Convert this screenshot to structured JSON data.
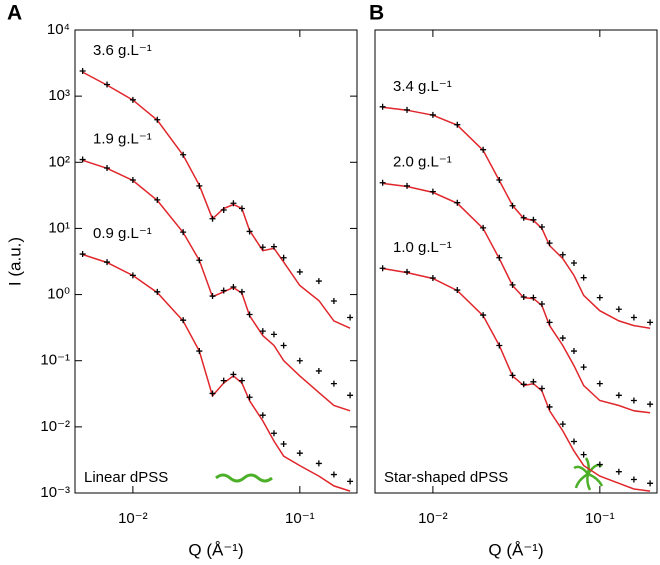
{
  "chart_data": [
    {
      "type": "line",
      "panel": "A",
      "ylabel": "I (a.u.)",
      "xlabel": "Q (Å⁻¹)",
      "note": "Linear dPSS",
      "log_x": true,
      "log_y": true,
      "xlim": [
        0.0045,
        0.22
      ],
      "ylim": [
        0.001,
        10000
      ],
      "xticks": [
        {
          "value": 0.01,
          "label": "10⁻²"
        },
        {
          "value": 0.1,
          "label": "10⁻¹"
        }
      ],
      "yticks": [
        {
          "value": 0.001,
          "label": "10⁻³"
        },
        {
          "value": 0.01,
          "label": "10⁻²"
        },
        {
          "value": 0.1,
          "label": "10⁻¹"
        },
        {
          "value": 1,
          "label": "10⁰"
        },
        {
          "value": 10,
          "label": "10¹"
        },
        {
          "value": 100,
          "label": "10²"
        },
        {
          "value": 1000,
          "label": "10³"
        },
        {
          "value": 10000,
          "label": "10⁴"
        }
      ],
      "x": [
        0.005,
        0.007,
        0.01,
        0.014,
        0.02,
        0.025,
        0.03,
        0.035,
        0.04,
        0.045,
        0.05,
        0.06,
        0.07,
        0.08,
        0.1,
        0.13,
        0.16,
        0.2
      ],
      "series": [
        {
          "name": "3.6 g.L⁻¹",
          "color": "#000000",
          "values": [
            2400,
            1500,
            880,
            440,
            130,
            44,
            14,
            19,
            24,
            20,
            9,
            5.2,
            5.3,
            3.6,
            2.2,
            1.6,
            0.8,
            0.45
          ]
        },
        {
          "name": "1.9 g.L⁻¹",
          "color": "#000000",
          "values": [
            110,
            82,
            54,
            27,
            8.8,
            3.3,
            0.95,
            1.15,
            1.3,
            1.1,
            0.5,
            0.28,
            0.25,
            0.17,
            0.1,
            0.07,
            0.045,
            0.03
          ]
        },
        {
          "name": "0.9 g.L⁻¹",
          "color": "#000000",
          "values": [
            4.1,
            3.1,
            1.95,
            1.1,
            0.41,
            0.14,
            0.032,
            0.05,
            0.062,
            0.05,
            0.028,
            0.015,
            0.008,
            0.0055,
            0.004,
            0.0028,
            0.0019,
            0.0015
          ]
        }
      ],
      "fits": [
        {
          "color": "#e0262b",
          "values": [
            2310,
            1470,
            870,
            433,
            128,
            45,
            14,
            20,
            23,
            20,
            9.3,
            4.6,
            5.0,
            3.1,
            1.37,
            0.81,
            0.4,
            0.31
          ]
        },
        {
          "color": "#e0262b",
          "values": [
            107,
            81,
            53,
            26.5,
            8.7,
            3.3,
            0.93,
            1.1,
            1.28,
            1.05,
            0.48,
            0.24,
            0.17,
            0.1,
            0.059,
            0.033,
            0.021,
            0.0175
          ]
        },
        {
          "color": "#e0262b",
          "values": [
            4.04,
            3.05,
            1.94,
            1.07,
            0.4,
            0.14,
            0.0295,
            0.046,
            0.059,
            0.046,
            0.0248,
            0.0123,
            0.0061,
            0.0036,
            0.0026,
            0.0018,
            0.00128,
            0.00107
          ]
        }
      ]
    },
    {
      "type": "line",
      "panel": "B",
      "xlabel": "Q (Å⁻¹)",
      "note": "Star-shaped dPSS",
      "log_x": true,
      "log_y": true,
      "xlim": [
        0.0045,
        0.22
      ],
      "ylim": [
        0.001,
        10000
      ],
      "xticks": [
        {
          "value": 0.01,
          "label": "10⁻²"
        },
        {
          "value": 0.1,
          "label": "10⁻¹"
        }
      ],
      "x": [
        0.005,
        0.007,
        0.01,
        0.014,
        0.02,
        0.025,
        0.03,
        0.035,
        0.04,
        0.045,
        0.05,
        0.06,
        0.07,
        0.08,
        0.1,
        0.13,
        0.16,
        0.2
      ],
      "series": [
        {
          "name": "3.4 g.L⁻¹",
          "color": "#000000",
          "values": [
            690,
            620,
            520,
            370,
            155,
            54,
            22,
            14.5,
            13.5,
            10.5,
            6,
            4,
            3,
            1.8,
            0.9,
            0.6,
            0.45,
            0.38
          ]
        },
        {
          "name": "2.0 g.L⁻¹",
          "color": "#000000",
          "values": [
            49,
            44,
            36,
            24.5,
            10.2,
            3.6,
            1.4,
            0.92,
            0.9,
            0.72,
            0.38,
            0.22,
            0.14,
            0.08,
            0.045,
            0.03,
            0.025,
            0.022
          ]
        },
        {
          "name": "1.0 g.L⁻¹",
          "color": "#000000",
          "values": [
            2.5,
            2.2,
            1.78,
            1.17,
            0.49,
            0.17,
            0.06,
            0.044,
            0.048,
            0.038,
            0.02,
            0.011,
            0.006,
            0.0038,
            0.0027,
            0.0021,
            0.0016,
            0.0014
          ]
        }
      ],
      "fits": [
        {
          "color": "#e0262b",
          "values": [
            681,
            614,
            515,
            364,
            152,
            53,
            22.3,
            14.2,
            13.2,
            10,
            5.5,
            3.5,
            1.94,
            0.97,
            0.57,
            0.4,
            0.34,
            0.31
          ]
        },
        {
          "color": "#e0262b",
          "values": [
            48,
            43,
            35,
            24,
            10,
            3.5,
            1.37,
            0.9,
            0.87,
            0.68,
            0.34,
            0.17,
            0.084,
            0.042,
            0.025,
            0.021,
            0.0175,
            0.0163
          ]
        },
        {
          "color": "#e0262b",
          "values": [
            2.48,
            2.15,
            1.75,
            1.15,
            0.48,
            0.17,
            0.059,
            0.042,
            0.045,
            0.035,
            0.0175,
            0.0087,
            0.0043,
            0.0026,
            0.0018,
            0.0014,
            0.00115,
            0.00107
          ]
        }
      ]
    }
  ]
}
